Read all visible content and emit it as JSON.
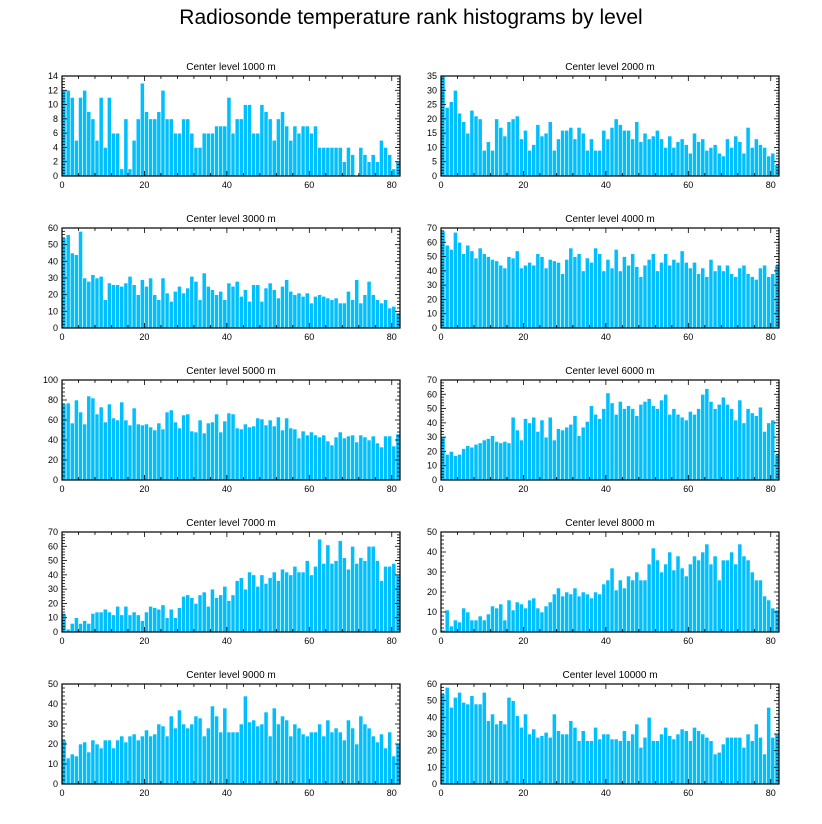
{
  "title": "Radiosonde temperature rank histograms by level",
  "colors": {
    "bar": "#00bfff",
    "bar_edge": "#ffffff",
    "axis": "#000000"
  },
  "chart_data": [
    {
      "type": "bar",
      "title": "Center level 1000 m",
      "xlim": [
        0,
        82
      ],
      "ylim": [
        0,
        14
      ],
      "xticks": [
        0,
        20,
        40,
        60,
        80
      ],
      "xticklabels": [
        "0",
        "20",
        "40",
        "60",
        "80"
      ],
      "yticks": [
        0,
        2,
        4,
        6,
        8,
        10,
        12,
        14
      ],
      "yticklabels": [
        "0",
        "2",
        "4",
        "6",
        "8",
        "10",
        "12",
        "14"
      ],
      "values": [
        12,
        12,
        11,
        5,
        11,
        12,
        9,
        8,
        5,
        11,
        4,
        11,
        6,
        6,
        1,
        8,
        1,
        5,
        8,
        13,
        9,
        8,
        8,
        9,
        12,
        8,
        8,
        6,
        6,
        8,
        8,
        6,
        4,
        4,
        6,
        6,
        6,
        7,
        7,
        7,
        11,
        6,
        8,
        8,
        10,
        10,
        6,
        6,
        10,
        9,
        8,
        5,
        8,
        9,
        7,
        5,
        7,
        6,
        7,
        7,
        6,
        7,
        4,
        4,
        4,
        4,
        4,
        4,
        2,
        4,
        3,
        0,
        4,
        3,
        2,
        3,
        2,
        5,
        4,
        3,
        1,
        2
      ]
    },
    {
      "type": "bar",
      "title": "Center level 2000 m",
      "xlim": [
        0,
        82
      ],
      "ylim": [
        0,
        35
      ],
      "xticks": [
        0,
        20,
        40,
        60,
        80
      ],
      "xticklabels": [
        "0",
        "20",
        "40",
        "60",
        "80"
      ],
      "yticks": [
        0,
        5,
        10,
        15,
        20,
        25,
        30,
        35
      ],
      "yticklabels": [
        "0",
        "5",
        "10",
        "15",
        "20",
        "25",
        "30",
        "35"
      ],
      "values": [
        35,
        24,
        26,
        30,
        22,
        19,
        15,
        23,
        21,
        20,
        9,
        12,
        9,
        20,
        17,
        14,
        19,
        20,
        21,
        13,
        16,
        9,
        11,
        18,
        14,
        15,
        19,
        9,
        13,
        16,
        16,
        17,
        13,
        17,
        15,
        9,
        13,
        9,
        9,
        16,
        13,
        17,
        20,
        18,
        16,
        16,
        13,
        19,
        12,
        15,
        13,
        14,
        16,
        13,
        10,
        14,
        10,
        12,
        13,
        11,
        8,
        15,
        12,
        13,
        9,
        10,
        11,
        8,
        7,
        13,
        10,
        14,
        12,
        8,
        17,
        10,
        13,
        11,
        10,
        7,
        8,
        4
      ]
    },
    {
      "type": "bar",
      "title": "Center level 3000 m",
      "xlim": [
        0,
        82
      ],
      "ylim": [
        0,
        60
      ],
      "xticks": [
        0,
        20,
        40,
        60,
        80
      ],
      "xticklabels": [
        "0",
        "20",
        "40",
        "60",
        "80"
      ],
      "yticks": [
        0,
        10,
        20,
        30,
        40,
        50,
        60
      ],
      "yticklabels": [
        "0",
        "10",
        "20",
        "30",
        "40",
        "50",
        "60"
      ],
      "values": [
        54,
        56,
        45,
        44,
        58,
        30,
        28,
        32,
        30,
        31,
        17,
        27,
        26,
        26,
        25,
        27,
        31,
        26,
        20,
        29,
        25,
        30,
        20,
        17,
        30,
        21,
        16,
        22,
        25,
        21,
        24,
        31,
        28,
        17,
        33,
        25,
        23,
        20,
        22,
        17,
        27,
        25,
        28,
        19,
        23,
        16,
        26,
        26,
        16,
        24,
        27,
        23,
        18,
        25,
        29,
        22,
        20,
        21,
        19,
        21,
        15,
        19,
        20,
        19,
        18,
        17,
        18,
        15,
        15,
        22,
        17,
        29,
        15,
        20,
        28,
        20,
        17,
        15,
        17,
        12,
        13,
        9
      ]
    },
    {
      "type": "bar",
      "title": "Center level 4000 m",
      "xlim": [
        0,
        82
      ],
      "ylim": [
        0,
        70
      ],
      "xticks": [
        0,
        20,
        40,
        60,
        80
      ],
      "xticklabels": [
        "0",
        "20",
        "40",
        "60",
        "80"
      ],
      "yticks": [
        0,
        10,
        20,
        30,
        40,
        50,
        60,
        70
      ],
      "yticklabels": [
        "0",
        "10",
        "20",
        "30",
        "40",
        "50",
        "60",
        "70"
      ],
      "values": [
        68,
        58,
        55,
        67,
        60,
        52,
        58,
        54,
        49,
        56,
        52,
        50,
        48,
        47,
        44,
        42,
        50,
        49,
        54,
        42,
        44,
        46,
        44,
        52,
        50,
        42,
        48,
        47,
        46,
        38,
        48,
        56,
        50,
        52,
        40,
        49,
        46,
        56,
        52,
        40,
        48,
        42,
        55,
        40,
        50,
        44,
        52,
        43,
        36,
        44,
        48,
        52,
        40,
        46,
        52,
        44,
        48,
        46,
        54,
        46,
        42,
        46,
        38,
        42,
        36,
        48,
        40,
        44,
        40,
        44,
        38,
        36,
        42,
        44,
        38,
        36,
        34,
        42,
        44,
        36,
        38,
        44
      ]
    },
    {
      "type": "bar",
      "title": "Center level 5000 m",
      "xlim": [
        0,
        82
      ],
      "ylim": [
        0,
        100
      ],
      "xticks": [
        0,
        20,
        40,
        60,
        80
      ],
      "xticklabels": [
        "0",
        "20",
        "40",
        "60",
        "80"
      ],
      "yticks": [
        0,
        20,
        40,
        60,
        80,
        100
      ],
      "yticklabels": [
        "0",
        "20",
        "40",
        "60",
        "80",
        "100"
      ],
      "values": [
        76,
        77,
        57,
        80,
        68,
        56,
        84,
        82,
        66,
        73,
        58,
        76,
        62,
        60,
        78,
        60,
        55,
        72,
        56,
        55,
        56,
        53,
        50,
        57,
        51,
        68,
        70,
        58,
        52,
        65,
        66,
        49,
        48,
        60,
        47,
        57,
        58,
        66,
        48,
        59,
        67,
        66,
        52,
        51,
        56,
        53,
        54,
        62,
        61,
        55,
        60,
        54,
        63,
        50,
        62,
        52,
        51,
        42,
        49,
        45,
        48,
        45,
        43,
        45,
        39,
        35,
        43,
        48,
        42,
        44,
        45,
        38,
        45,
        43,
        40,
        44,
        37,
        33,
        44,
        44,
        34,
        46
      ]
    },
    {
      "type": "bar",
      "title": "Center level 6000 m",
      "xlim": [
        0,
        82
      ],
      "ylim": [
        0,
        70
      ],
      "xticks": [
        0,
        20,
        40,
        60,
        80
      ],
      "xticklabels": [
        "0",
        "20",
        "40",
        "60",
        "80"
      ],
      "yticks": [
        0,
        10,
        20,
        30,
        40,
        50,
        60,
        70
      ],
      "yticklabels": [
        "0",
        "10",
        "20",
        "30",
        "40",
        "50",
        "60",
        "70"
      ],
      "values": [
        30,
        18,
        20,
        17,
        18,
        22,
        24,
        23,
        25,
        26,
        28,
        29,
        31,
        27,
        26,
        27,
        26,
        44,
        35,
        28,
        43,
        40,
        44,
        34,
        42,
        30,
        44,
        28,
        36,
        35,
        37,
        39,
        45,
        31,
        37,
        41,
        52,
        46,
        43,
        50,
        61,
        54,
        46,
        55,
        50,
        52,
        50,
        45,
        53,
        55,
        57,
        52,
        50,
        56,
        60,
        46,
        50,
        46,
        44,
        42,
        48,
        46,
        50,
        60,
        64,
        55,
        50,
        53,
        58,
        53,
        50,
        42,
        56,
        40,
        50,
        47,
        45,
        51,
        34,
        40,
        42,
        18
      ]
    },
    {
      "type": "bar",
      "title": "Center level 7000 m",
      "xlim": [
        0,
        82
      ],
      "ylim": [
        0,
        70
      ],
      "xticks": [
        0,
        20,
        40,
        60,
        80
      ],
      "xticklabels": [
        "0",
        "20",
        "40",
        "60",
        "80"
      ],
      "yticks": [
        0,
        10,
        20,
        30,
        40,
        50,
        60,
        70
      ],
      "yticklabels": [
        "0",
        "10",
        "20",
        "30",
        "40",
        "50",
        "60",
        "70"
      ],
      "values": [
        13,
        2,
        6,
        10,
        6,
        8,
        6,
        13,
        14,
        14,
        16,
        14,
        12,
        18,
        12,
        18,
        12,
        14,
        12,
        8,
        14,
        18,
        17,
        16,
        19,
        10,
        16,
        10,
        17,
        25,
        26,
        24,
        20,
        26,
        28,
        18,
        30,
        24,
        26,
        32,
        22,
        26,
        36,
        38,
        30,
        42,
        40,
        32,
        40,
        34,
        38,
        42,
        36,
        44,
        42,
        40,
        46,
        42,
        42,
        50,
        40,
        46,
        65,
        48,
        61,
        48,
        50,
        64,
        52,
        44,
        60,
        48,
        52,
        50,
        60,
        60,
        50,
        36,
        46,
        46,
        48,
        40
      ]
    },
    {
      "type": "bar",
      "title": "Center level 8000 m",
      "xlim": [
        0,
        82
      ],
      "ylim": [
        0,
        50
      ],
      "xticks": [
        0,
        20,
        40,
        60,
        80
      ],
      "xticklabels": [
        "0",
        "20",
        "40",
        "60",
        "80"
      ],
      "yticks": [
        0,
        10,
        20,
        30,
        40,
        50
      ],
      "yticklabels": [
        "0",
        "10",
        "20",
        "30",
        "40",
        "50"
      ],
      "values": [
        1,
        11,
        3,
        6,
        5,
        12,
        10,
        6,
        6,
        8,
        6,
        9,
        13,
        12,
        14,
        6,
        16,
        11,
        15,
        14,
        12,
        16,
        17,
        12,
        10,
        13,
        15,
        19,
        22,
        18,
        20,
        19,
        22,
        18,
        20,
        19,
        17,
        20,
        19,
        24,
        26,
        32,
        21,
        26,
        22,
        28,
        26,
        30,
        26,
        26,
        34,
        42,
        36,
        30,
        34,
        40,
        31,
        38,
        32,
        28,
        34,
        38,
        36,
        40,
        44,
        34,
        38,
        26,
        36,
        36,
        40,
        34,
        44,
        38,
        36,
        30,
        26,
        26,
        18,
        16,
        12,
        11
      ]
    },
    {
      "type": "bar",
      "title": "Center level 9000 m",
      "xlim": [
        0,
        82
      ],
      "ylim": [
        0,
        50
      ],
      "xticks": [
        0,
        20,
        40,
        60,
        80
      ],
      "xticklabels": [
        "0",
        "20",
        "40",
        "60",
        "80"
      ],
      "yticks": [
        0,
        10,
        20,
        30,
        40,
        50
      ],
      "yticklabels": [
        "0",
        "10",
        "20",
        "30",
        "40",
        "50"
      ],
      "values": [
        22,
        13,
        15,
        14,
        20,
        21,
        16,
        22,
        20,
        18,
        22,
        22,
        18,
        22,
        24,
        21,
        24,
        25,
        22,
        24,
        27,
        24,
        25,
        30,
        29,
        24,
        34,
        28,
        37,
        30,
        28,
        30,
        34,
        33,
        24,
        28,
        39,
        34,
        26,
        38,
        26,
        26,
        26,
        30,
        44,
        31,
        32,
        29,
        30,
        36,
        24,
        38,
        30,
        34,
        32,
        24,
        30,
        28,
        25,
        24,
        26,
        26,
        30,
        24,
        32,
        26,
        28,
        26,
        22,
        32,
        28,
        20,
        34,
        30,
        28,
        24,
        21,
        25,
        18,
        26,
        14,
        20
      ]
    },
    {
      "type": "bar",
      "title": "Center level 10000 m",
      "xlim": [
        0,
        82
      ],
      "ylim": [
        0,
        60
      ],
      "xticks": [
        0,
        20,
        40,
        60,
        80
      ],
      "xticklabels": [
        "0",
        "20",
        "40",
        "60",
        "80"
      ],
      "yticks": [
        0,
        10,
        20,
        30,
        40,
        50,
        60
      ],
      "yticklabels": [
        "0",
        "10",
        "20",
        "30",
        "40",
        "50",
        "60"
      ],
      "values": [
        54,
        58,
        46,
        52,
        55,
        49,
        48,
        53,
        48,
        48,
        55,
        38,
        42,
        36,
        38,
        36,
        52,
        50,
        41,
        34,
        42,
        30,
        33,
        28,
        29,
        31,
        28,
        42,
        32,
        30,
        30,
        38,
        34,
        26,
        32,
        26,
        26,
        34,
        27,
        30,
        30,
        27,
        27,
        26,
        32,
        26,
        30,
        36,
        22,
        28,
        40,
        26,
        26,
        30,
        34,
        29,
        27,
        30,
        33,
        32,
        26,
        34,
        32,
        30,
        28,
        26,
        18,
        19,
        24,
        28,
        28,
        28,
        28,
        22,
        30,
        26,
        36,
        28,
        18,
        46,
        28,
        30
      ]
    }
  ]
}
